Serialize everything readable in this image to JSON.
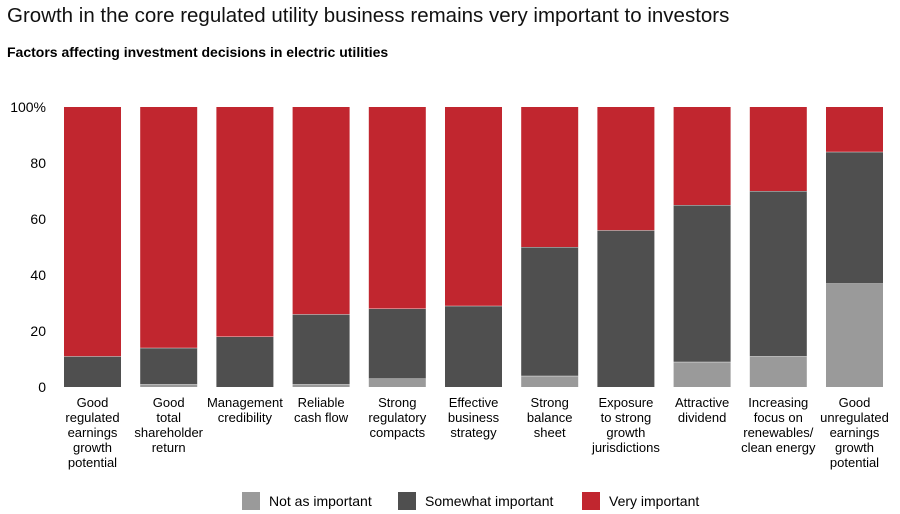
{
  "title": "Growth in the core regulated utility business remains very important to investors",
  "subtitle": "Factors affecting investment decisions in electric utilities",
  "chart_data": {
    "type": "bar",
    "stacked": true,
    "categories": [
      [
        "Good",
        "regulated",
        "earnings",
        "growth",
        "potential"
      ],
      [
        "Good",
        "total",
        "shareholder",
        "return"
      ],
      [
        "Management",
        "credibility"
      ],
      [
        "Reliable",
        "cash flow"
      ],
      [
        "Strong",
        "regulatory",
        "compacts"
      ],
      [
        "Effective",
        "business",
        "strategy"
      ],
      [
        "Strong",
        "balance",
        "sheet"
      ],
      [
        "Exposure",
        "to strong",
        "growth",
        "jurisdictions"
      ],
      [
        "Attractive",
        "dividend"
      ],
      [
        "Increasing",
        "focus on",
        "renewables/",
        "clean energy"
      ],
      [
        "Good",
        "unregulated",
        "earnings",
        "growth",
        "potential"
      ]
    ],
    "series": [
      {
        "name": "Not as important",
        "color": "#9a9a9a",
        "values": [
          0,
          1,
          0,
          1,
          3,
          0,
          4,
          0,
          9,
          11,
          37
        ]
      },
      {
        "name": "Somewhat important",
        "color": "#4f4f4f",
        "values": [
          11,
          13,
          18,
          25,
          25,
          29,
          46,
          56,
          56,
          59,
          47
        ]
      },
      {
        "name": "Very important",
        "color": "#c1262f",
        "values": [
          89,
          86,
          82,
          74,
          72,
          71,
          50,
          44,
          35,
          30,
          16
        ]
      }
    ],
    "yticks": [
      "100%",
      "80",
      "60",
      "40",
      "20",
      "0"
    ],
    "ylim": [
      0,
      100
    ],
    "legend_position": "bottom",
    "grid": false
  }
}
